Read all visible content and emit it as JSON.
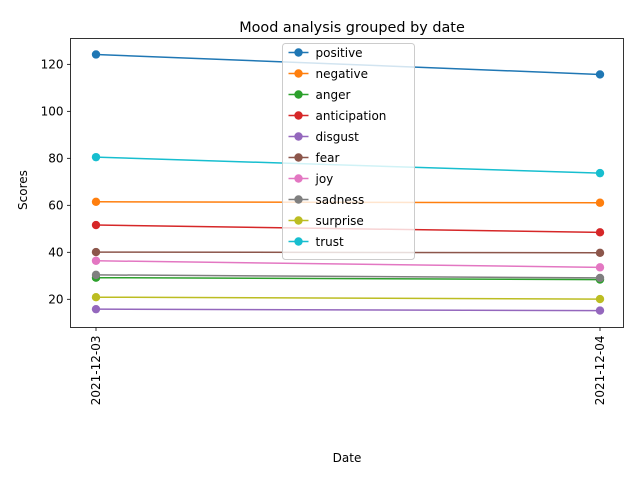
{
  "chart_data": {
    "type": "line",
    "title": "Mood analysis grouped by date",
    "xlabel": "Date",
    "ylabel": "Scores",
    "categories": [
      "2021-12-03",
      "2021-12-04"
    ],
    "ylim": [
      8,
      131
    ],
    "yticks": [
      20,
      40,
      60,
      80,
      100,
      120
    ],
    "grid": false,
    "legend_position": "upper center",
    "series": [
      {
        "name": "positive",
        "color": "#1f77b4",
        "values": [
          124.2,
          115.7
        ]
      },
      {
        "name": "negative",
        "color": "#ff7f0e",
        "values": [
          61.5,
          61.1
        ]
      },
      {
        "name": "anger",
        "color": "#2ca02c",
        "values": [
          29.2,
          28.4
        ]
      },
      {
        "name": "anticipation",
        "color": "#d62728",
        "values": [
          51.6,
          48.5
        ]
      },
      {
        "name": "disgust",
        "color": "#9467bd",
        "values": [
          15.8,
          15.2
        ]
      },
      {
        "name": "fear",
        "color": "#8c564b",
        "values": [
          40.1,
          39.8
        ]
      },
      {
        "name": "joy",
        "color": "#e377c2",
        "values": [
          36.4,
          33.6
        ]
      },
      {
        "name": "sadness",
        "color": "#7f7f7f",
        "values": [
          30.4,
          29.1
        ]
      },
      {
        "name": "surprise",
        "color": "#bcbd22",
        "values": [
          20.9,
          20.1
        ]
      },
      {
        "name": "trust",
        "color": "#17becf",
        "values": [
          80.5,
          73.7
        ]
      }
    ]
  }
}
